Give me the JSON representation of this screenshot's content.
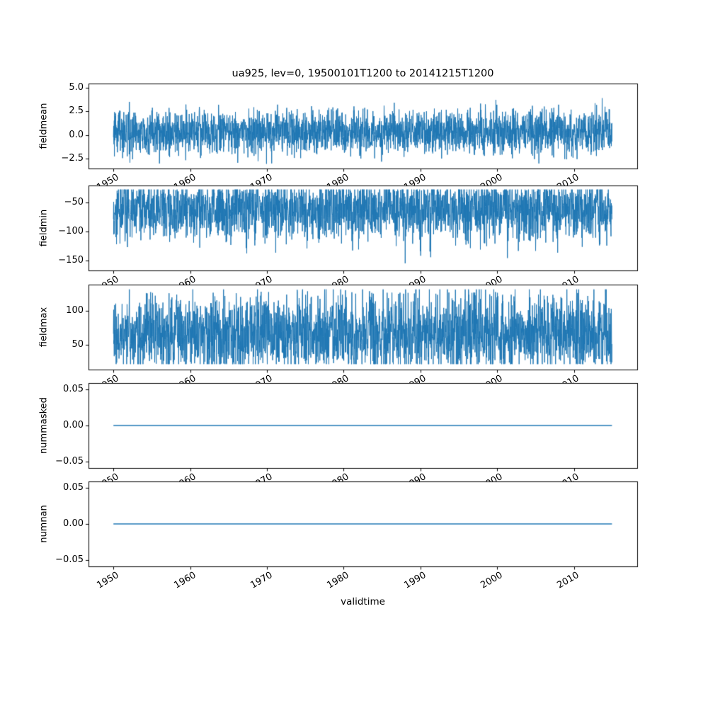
{
  "chart_data": {
    "type": "line",
    "title": "ua925, lev=0, 19500101T1200 to 20141215T1200",
    "xlabel": "validtime",
    "line_color": "#1f77b4",
    "spine_color": "#000000",
    "background_color": "#ffffff",
    "grid": false,
    "legend": "none",
    "xlim": [
      1946.75,
      2018.25
    ],
    "x_data_range": [
      1950.0,
      2014.96
    ],
    "x_ticks": [
      1950,
      1960,
      1970,
      1980,
      1990,
      2000,
      2010
    ],
    "x_tick_labels": [
      "1950",
      "1960",
      "1970",
      "1980",
      "1990",
      "2000",
      "2010"
    ],
    "subplots": [
      {
        "ylabel": "fieldmean",
        "ylim": [
          -3.55,
          5.45
        ],
        "yticks": [
          5.0,
          2.5,
          0.0,
          -2.5
        ],
        "ytick_labels": [
          "5.0",
          "2.5",
          "0.0",
          "−2.5"
        ],
        "series": {
          "kind": "noise",
          "seed": 20,
          "n": 2600,
          "mean": 0.35,
          "std": 1.15,
          "clip": [
            -3.05,
            5.0
          ]
        },
        "description": "dense noisy series oscillating roughly between -3 and 5 around 0"
      },
      {
        "ylabel": "fieldmin",
        "ylim": [
          -167,
          -20
        ],
        "yticks": [
          -50,
          -100,
          -150
        ],
        "ytick_labels": [
          "−50",
          "−100",
          "−150"
        ],
        "series": {
          "kind": "noise",
          "seed": 77,
          "n": 2600,
          "mean": -63,
          "std": 26,
          "clip": [
            -160,
            -27
          ]
        },
        "description": "dense noisy series roughly between -160 and -27"
      },
      {
        "ylabel": "fieldmax",
        "ylim": [
          14,
          138
        ],
        "yticks": [
          100,
          50
        ],
        "ytick_labels": [
          "100",
          "50"
        ],
        "series": {
          "kind": "noise",
          "seed": 5,
          "n": 2600,
          "mean": 67,
          "std": 29,
          "clip": [
            22,
            131
          ]
        },
        "description": "dense noisy series roughly between 22 and 131"
      },
      {
        "ylabel": "nummasked",
        "ylim": [
          -0.0585,
          0.0585
        ],
        "yticks": [
          0.05,
          0.0,
          -0.05
        ],
        "ytick_labels": [
          "0.05",
          "0.00",
          "−0.05"
        ],
        "series": {
          "kind": "constant",
          "value": 0.0
        },
        "description": "constant zero line"
      },
      {
        "ylabel": "numnan",
        "ylim": [
          -0.0585,
          0.0585
        ],
        "yticks": [
          0.05,
          0.0,
          -0.05
        ],
        "ytick_labels": [
          "0.05",
          "0.00",
          "−0.05"
        ],
        "series": {
          "kind": "constant",
          "value": 0.0
        },
        "description": "constant zero line"
      }
    ]
  }
}
